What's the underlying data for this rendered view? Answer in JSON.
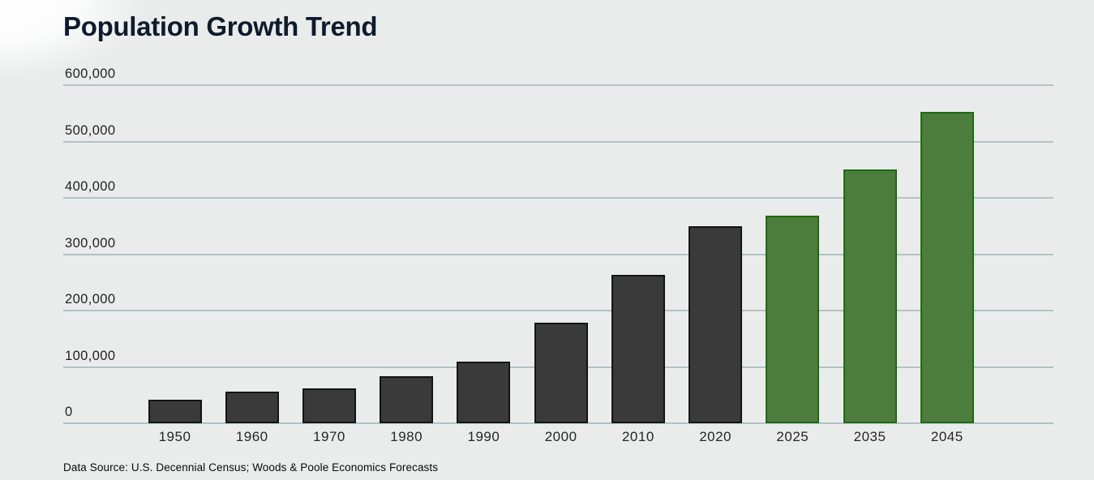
{
  "page": {
    "title": "Population Growth Trend",
    "source_note": "Data Source: U.S. Decennial Census; Woods & Poole Economics Forecasts"
  },
  "colors": {
    "background": "#e9eceb",
    "gridline": "#b5c1c4",
    "historical_bar_fill": "#3a3a3a",
    "historical_bar_border": "#141414",
    "forecast_bar_fill": "#4d7d3c",
    "forecast_bar_border": "#1f6a12",
    "title_text": "#0f1a2b",
    "tick_text": "#222222",
    "source_text": "#0a0a0a"
  },
  "chart_data": {
    "type": "bar",
    "title": "Population Growth Trend",
    "categories": [
      "1950",
      "1960",
      "1970",
      "1980",
      "1990",
      "2000",
      "2010",
      "2020",
      "2025",
      "2035",
      "2045"
    ],
    "values": [
      42000,
      56000,
      62000,
      83000,
      109000,
      178000,
      264000,
      350000,
      369000,
      451000,
      553000
    ],
    "forecast_flags": [
      false,
      false,
      false,
      false,
      false,
      false,
      false,
      false,
      true,
      true,
      true
    ],
    "segment_names": {
      "historical": "U.S. Decennial Census (1950-2020)",
      "forecast": "Woods & Poole Economics Forecasts (2025-2045)"
    },
    "y_ticks": [
      0,
      100000,
      200000,
      300000,
      400000,
      500000,
      600000
    ],
    "y_tick_labels": [
      "0",
      "100,000",
      "200,000",
      "300,000",
      "400,000",
      "500,000",
      "600,000"
    ],
    "ylim": [
      0,
      600000
    ],
    "xlabel": "",
    "ylabel": "",
    "grid": "horizontal",
    "legend": "none"
  }
}
